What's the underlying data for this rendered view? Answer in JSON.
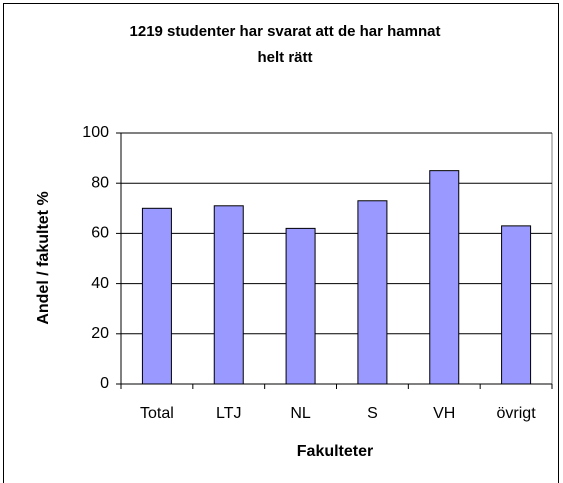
{
  "chart_data": {
    "type": "bar",
    "title": [
      "1219 studenter har svarat att de har hamnat",
      "helt rätt"
    ],
    "xlabel": "Fakulteter",
    "ylabel": "Andel / fakultet %",
    "categories": [
      "Total",
      "LTJ",
      "NL",
      "S",
      "VH",
      "övrigt"
    ],
    "values": [
      70,
      71,
      62,
      73,
      85,
      63
    ],
    "color": "#9999ff",
    "ylim": [
      0,
      100
    ],
    "yticks": [
      0,
      20,
      40,
      60,
      80,
      100
    ],
    "grid": true
  }
}
